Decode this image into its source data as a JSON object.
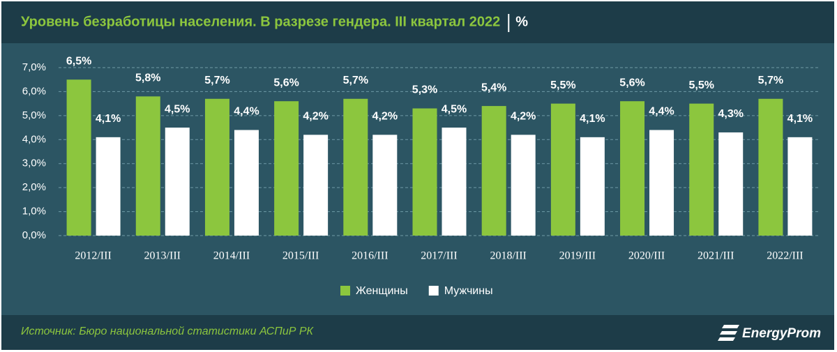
{
  "chart_data": {
    "type": "bar",
    "title": "Уровень безработицы населения. В разрезе гендера. III квартал 2022",
    "unit": "%",
    "categories": [
      "2012/III",
      "2013/III",
      "2014/III",
      "2015/III",
      "2016/III",
      "2017/III",
      "2018/III",
      "2019/III",
      "2020/III",
      "2021/III",
      "2022/III"
    ],
    "series": [
      {
        "name": "Женщины",
        "color": "#8cc63e",
        "values": [
          6.5,
          5.8,
          5.7,
          5.6,
          5.7,
          5.3,
          5.4,
          5.5,
          5.6,
          5.5,
          5.7
        ],
        "value_labels": [
          "6,5%",
          "5,8%",
          "5,7%",
          "5,6%",
          "5,7%",
          "5,3%",
          "5,4%",
          "5,5%",
          "5,6%",
          "5,5%",
          "5,7%"
        ]
      },
      {
        "name": "Мужчины",
        "color": "#ffffff",
        "values": [
          4.1,
          4.5,
          4.4,
          4.2,
          4.2,
          4.5,
          4.2,
          4.1,
          4.4,
          4.3,
          4.1
        ],
        "value_labels": [
          "4,1%",
          "4,5%",
          "4,4%",
          "4,2%",
          "4,2%",
          "4,5%",
          "4,2%",
          "4,1%",
          "4,4%",
          "4,3%",
          "4,1%"
        ]
      }
    ],
    "ylim": [
      0,
      7
    ],
    "yticks": [
      {
        "value": 0,
        "label": "0,0%"
      },
      {
        "value": 1,
        "label": "1,0%"
      },
      {
        "value": 2,
        "label": "2,0%"
      },
      {
        "value": 3,
        "label": "3,0%"
      },
      {
        "value": 4,
        "label": "4,0%"
      },
      {
        "value": 5,
        "label": "5,0%"
      },
      {
        "value": 6,
        "label": "6,0%"
      },
      {
        "value": 7,
        "label": "7,0%"
      }
    ],
    "grid": true,
    "legend": "bottom",
    "source": "Источник: Бюро национальной статистики АСПиР РК",
    "logo": "EnergyProm"
  }
}
